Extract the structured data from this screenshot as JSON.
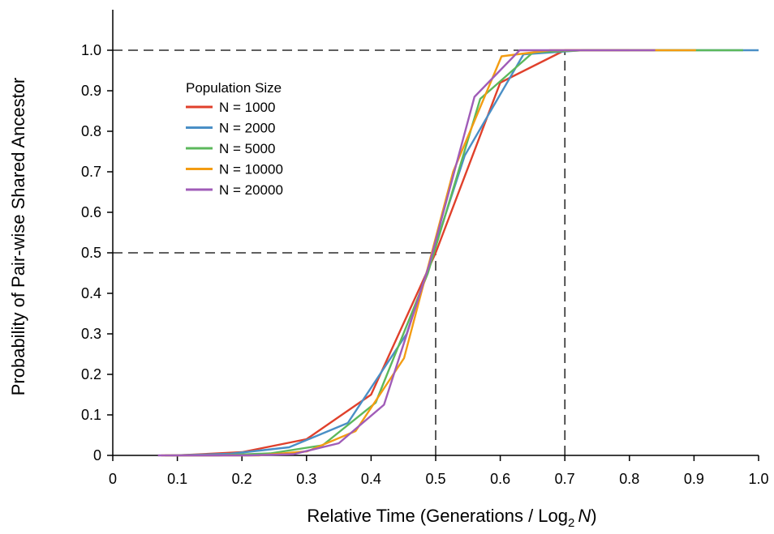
{
  "chart_data": {
    "type": "line",
    "title": "",
    "xlabel": {
      "main": "Relative Time (Generations / Log",
      "sub": "2",
      "var": "N",
      "end": ")"
    },
    "ylabel": "Probability of Pair-wise Shared Ancestor",
    "xlim": [
      0,
      1.0
    ],
    "ylim": [
      0,
      1.0
    ],
    "x_ticks": [
      "0",
      "0.1",
      "0.2",
      "0.3",
      "0.4",
      "0.5",
      "0.6",
      "0.7",
      "0.8",
      "0.9",
      "1.0"
    ],
    "y_ticks": [
      "0",
      "0.1",
      "0.2",
      "0.3",
      "0.4",
      "0.5",
      "0.6",
      "0.7",
      "0.8",
      "0.9",
      "1.0"
    ],
    "grid": false,
    "legend": {
      "title": "Population Size",
      "placement": "top-left"
    },
    "reference_lines": [
      {
        "kind": "horizontal",
        "y": 1.0,
        "x_from": 0,
        "x_to": 0.7
      },
      {
        "kind": "vertical",
        "x": 0.7,
        "y_from": 0,
        "y_to": 1.0
      },
      {
        "kind": "horizontal",
        "y": 0.5,
        "x_from": 0,
        "x_to": 0.5
      },
      {
        "kind": "vertical",
        "x": 0.5,
        "y_from": 0,
        "y_to": 0.5
      }
    ],
    "series": [
      {
        "name": "N = 1000",
        "color": "#e0402b",
        "x": [
          0.1,
          0.2,
          0.3,
          0.4,
          0.5,
          0.6,
          0.7,
          0.8
        ],
        "y": [
          0.0,
          0.008,
          0.04,
          0.15,
          0.5,
          0.92,
          1.0,
          1.0
        ]
      },
      {
        "name": "N = 2000",
        "color": "#4a8fc6",
        "x": [
          0.091,
          0.182,
          0.273,
          0.364,
          0.455,
          0.545,
          0.636,
          0.727,
          0.818,
          0.909,
          1.0
        ],
        "y": [
          0.0,
          0.004,
          0.02,
          0.08,
          0.3,
          0.74,
          0.99,
          1.0,
          1.0,
          1.0,
          1.0
        ]
      },
      {
        "name": "N = 5000",
        "color": "#5cb85c",
        "x": [
          0.081,
          0.163,
          0.244,
          0.325,
          0.407,
          0.488,
          0.569,
          0.651,
          0.732,
          0.813,
          0.895,
          0.976
        ],
        "y": [
          0.0,
          0.0,
          0.005,
          0.025,
          0.13,
          0.45,
          0.88,
          0.995,
          1.0,
          1.0,
          1.0,
          1.0
        ]
      },
      {
        "name": "N = 10000",
        "color": "#f39c12",
        "x": [
          0.075,
          0.151,
          0.226,
          0.301,
          0.376,
          0.451,
          0.527,
          0.602,
          0.677,
          0.753,
          0.828,
          0.903
        ],
        "y": [
          0.0,
          0.0,
          0.0,
          0.01,
          0.06,
          0.24,
          0.7,
          0.985,
          1.0,
          1.0,
          1.0,
          1.0
        ]
      },
      {
        "name": "N = 20000",
        "color": "#a05cb8",
        "x": [
          0.07,
          0.14,
          0.21,
          0.28,
          0.35,
          0.42,
          0.49,
          0.56,
          0.63,
          0.7,
          0.77,
          0.84
        ],
        "y": [
          0.0,
          0.0,
          0.0,
          0.003,
          0.03,
          0.125,
          0.47,
          0.885,
          1.0,
          1.0,
          1.0,
          1.0
        ]
      }
    ]
  }
}
